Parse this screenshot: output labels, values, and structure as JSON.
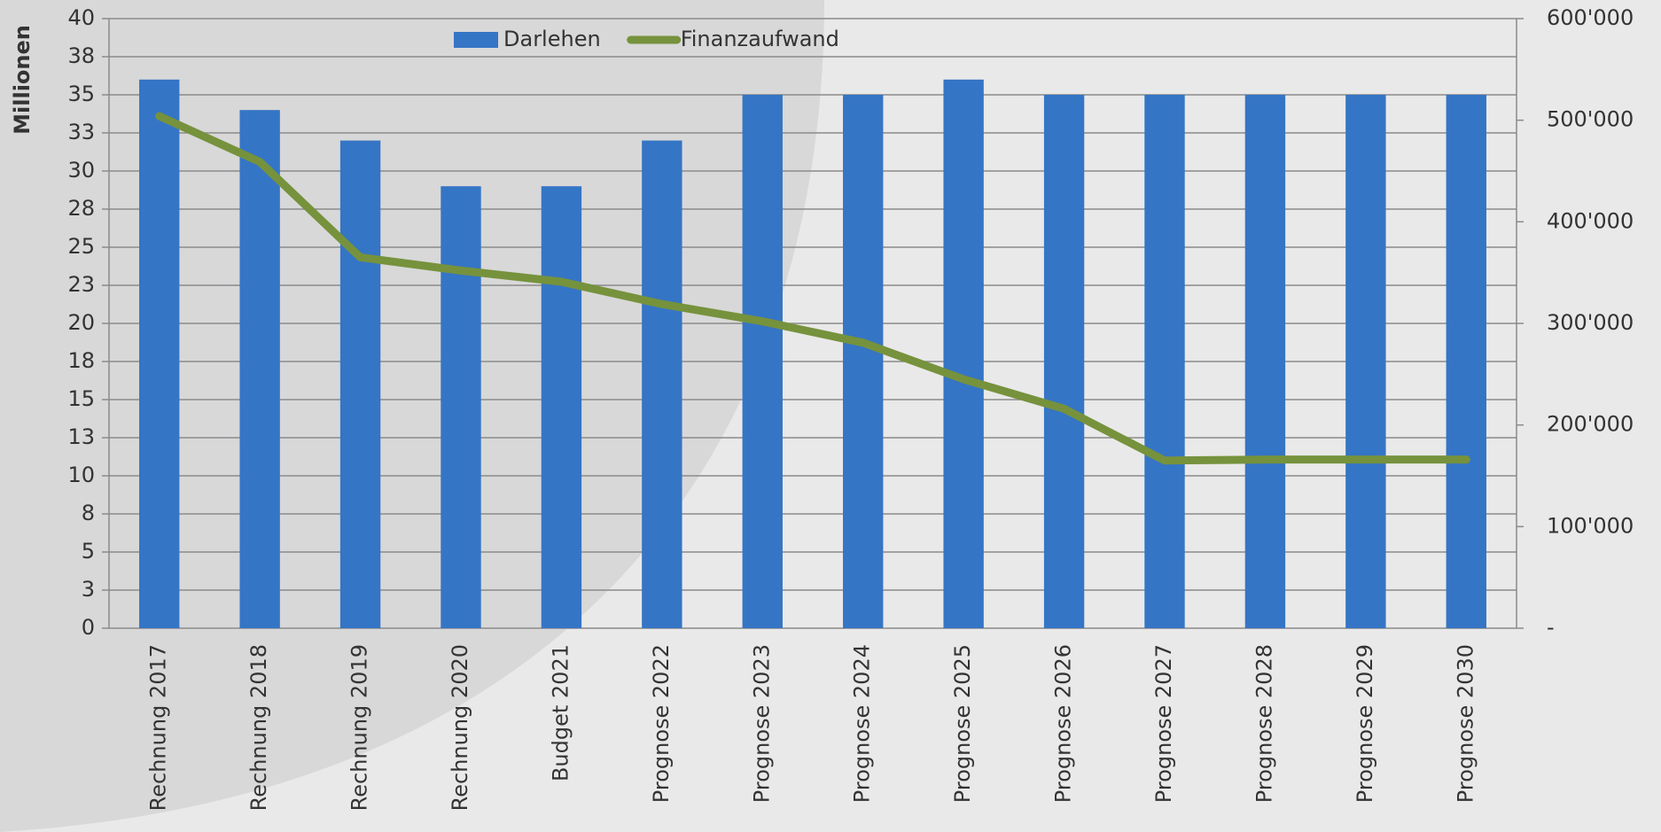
{
  "chart_data": {
    "type": "bar_line",
    "y_axis_label": "Millionen",
    "categories": [
      "Rechnung 2017",
      "Rechnung 2018",
      "Rechnung 2019",
      "Rechnung 2020",
      "Budget 2021",
      "Prognose 2022",
      "Prognose 2023",
      "Prognose 2024",
      "Prognose 2025",
      "Prognose 2026",
      "Prognose 2027",
      "Prognose 2028",
      "Prognose 2029",
      "Prognose 2030"
    ],
    "series": [
      {
        "name": "Darlehen",
        "type": "bar",
        "color": "#3575c5",
        "values": [
          36,
          34,
          32,
          29,
          29,
          32,
          35,
          35,
          36,
          35,
          35,
          35,
          35,
          35
        ]
      },
      {
        "name": "Finanzaufwand",
        "type": "line",
        "axis": "y2",
        "color": "#76923c",
        "values": [
          504000,
          459000,
          365000,
          352000,
          341000,
          319000,
          302000,
          281000,
          245000,
          216000,
          165000,
          166000,
          166000,
          166000
        ]
      }
    ],
    "ylim": [
      0,
      40
    ],
    "yticks": [
      0,
      {
        "value": 2.5,
        "label": "3"
      },
      5,
      {
        "value": 7.5,
        "label": "8"
      },
      10,
      {
        "value": 12.5,
        "label": "13"
      },
      15,
      {
        "value": 17.5,
        "label": "18"
      },
      20,
      {
        "value": 22.5,
        "label": "23"
      },
      25,
      {
        "value": 27.5,
        "label": "28"
      },
      30,
      {
        "value": 32.5,
        "label": "33"
      },
      35,
      {
        "value": 37.5,
        "label": "38"
      },
      40
    ],
    "y2lim": [
      0,
      600000
    ],
    "y2ticks": [
      {
        "value": 0,
        "label": "-"
      },
      {
        "value": 100000,
        "label": "100'000"
      },
      {
        "value": 200000,
        "label": "200'000"
      },
      {
        "value": 300000,
        "label": "300'000"
      },
      {
        "value": 400000,
        "label": "400'000"
      },
      {
        "value": 500000,
        "label": "500'000"
      },
      {
        "value": 600000,
        "label": "600'000"
      }
    ],
    "grid": true,
    "legend": "top"
  }
}
